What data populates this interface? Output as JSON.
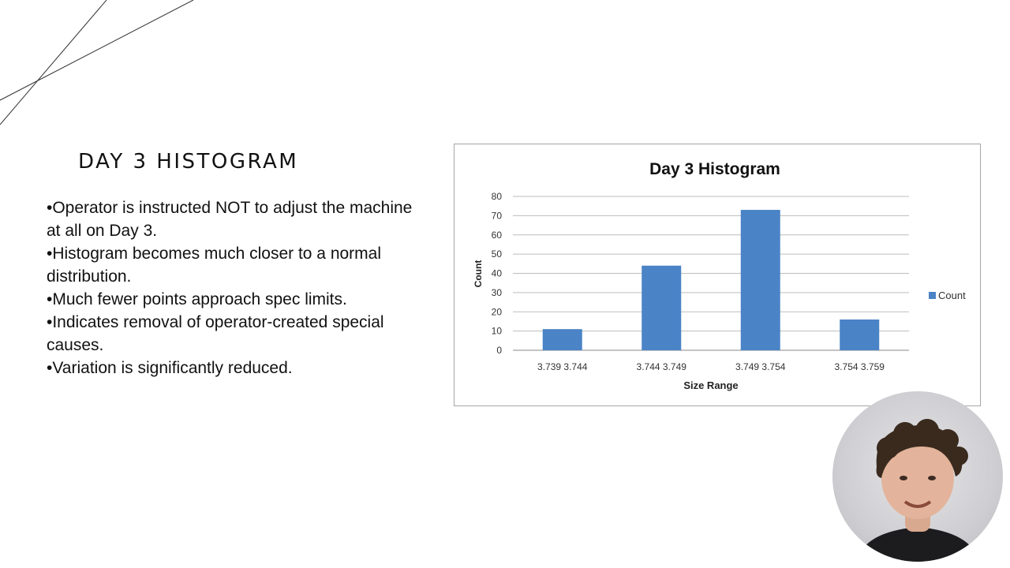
{
  "slide": {
    "title": "DAY 3 HISTOGRAM",
    "bullets": [
      "•Operator is instructed NOT to adjust the machine at all on Day 3.",
      "•Histogram becomes much closer to a normal distribution.",
      "•Much fewer points approach spec limits.",
      "•Indicates removal of operator-created special causes.",
      "•Variation is significantly reduced."
    ]
  },
  "chart_data": {
    "type": "bar",
    "title": "Day 3 Histogram",
    "xlabel": "Size Range",
    "ylabel": "Count",
    "categories": [
      "3.739 3.744",
      "3.744 3.749",
      "3.749 3.754",
      "3.754 3.759"
    ],
    "series": [
      {
        "name": "Count",
        "values": [
          11,
          44,
          73,
          16
        ],
        "color": "#4a83c6"
      }
    ],
    "ylim": [
      0,
      80
    ],
    "yticks": [
      0,
      10,
      20,
      30,
      40,
      50,
      60,
      70,
      80
    ],
    "grid": true,
    "legend": "right"
  },
  "webcam": {
    "icon": "presenter-webcam-video"
  }
}
